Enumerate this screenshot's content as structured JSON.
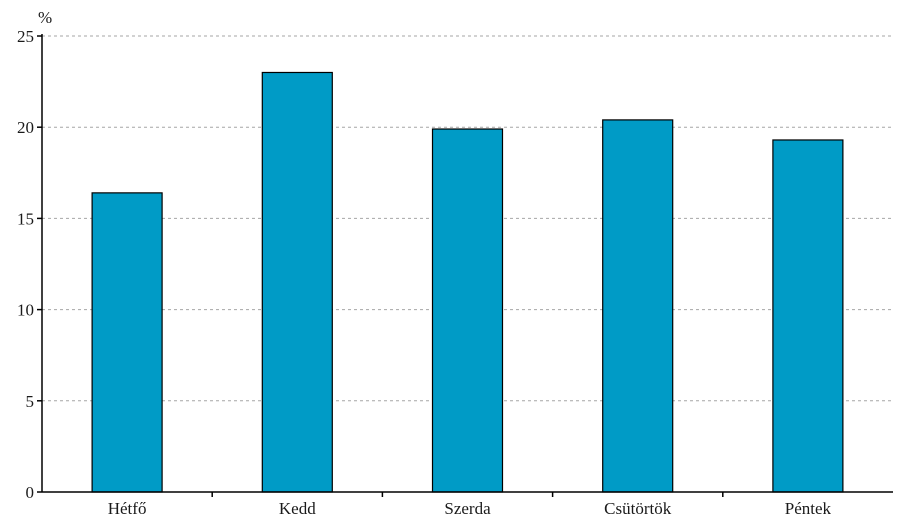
{
  "chart_data": {
    "type": "bar",
    "ylabel": "%",
    "categories": [
      "Hétfő",
      "Kedd",
      "Szerda",
      "Csütörtök",
      "Péntek"
    ],
    "values": [
      16.4,
      23.0,
      19.9,
      20.4,
      19.3
    ],
    "ylim": [
      0,
      25
    ],
    "yticks": [
      0,
      5,
      10,
      15,
      20,
      25
    ],
    "grid": true,
    "bar_color": "#009bc6"
  }
}
